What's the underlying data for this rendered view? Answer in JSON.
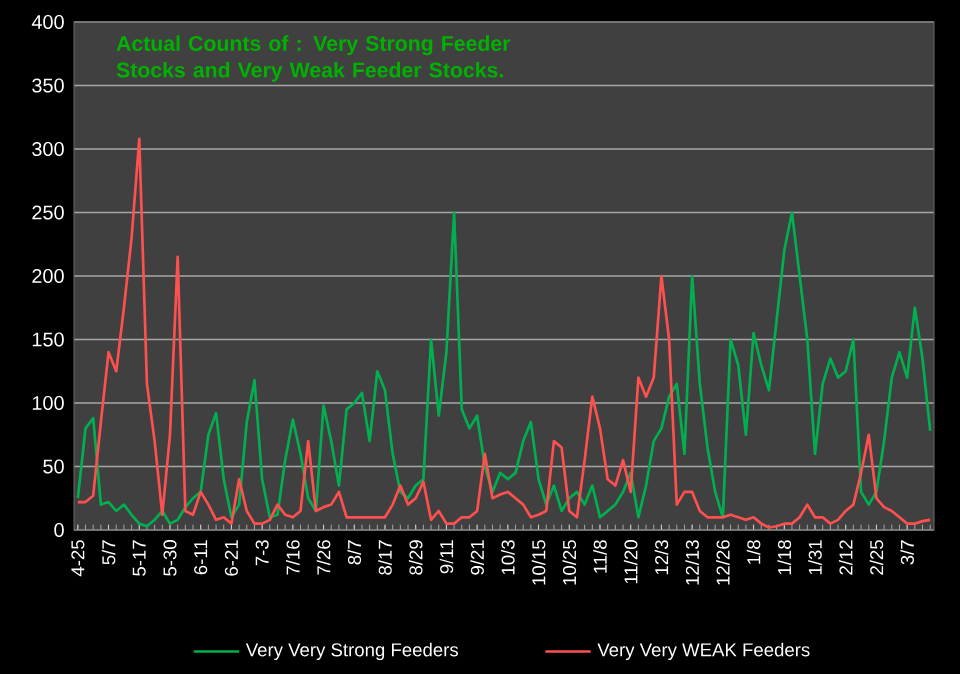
{
  "chart_data": {
    "type": "line",
    "title": "Actual Counts of : Very Strong Feeder Stocks and Very Weak Feeder Stocks.",
    "categories": [
      "4-25",
      null,
      null,
      null,
      "5/7",
      null,
      null,
      null,
      "5-17",
      null,
      null,
      null,
      "5-30",
      null,
      null,
      null,
      "6-11",
      null,
      null,
      null,
      "6-21",
      null,
      null,
      null,
      "7-3",
      null,
      null,
      null,
      "7/16",
      null,
      null,
      null,
      "7/26",
      null,
      null,
      null,
      "8/7",
      null,
      null,
      null,
      "8/17",
      null,
      null,
      null,
      "8/29",
      null,
      null,
      null,
      "9/11",
      null,
      null,
      null,
      "9/21",
      null,
      null,
      null,
      "10/3",
      null,
      null,
      null,
      "10/15",
      null,
      null,
      null,
      "10/25",
      null,
      null,
      null,
      "11/8",
      null,
      null,
      null,
      "11/20",
      null,
      null,
      null,
      "12/3",
      null,
      null,
      null,
      "12/13",
      null,
      null,
      null,
      "12/26",
      null,
      null,
      null,
      "1/8",
      null,
      null,
      null,
      "1/18",
      null,
      null,
      null,
      "1/31",
      null,
      null,
      null,
      "2/12",
      null,
      null,
      null,
      "2/25",
      null,
      null,
      null,
      "3/7",
      null,
      null,
      null
    ],
    "series": [
      {
        "name": "Very Very Strong Feeders",
        "color": "#00b050",
        "values": [
          25,
          80,
          88,
          20,
          22,
          15,
          20,
          12,
          5,
          3,
          8,
          15,
          5,
          8,
          18,
          25,
          30,
          75,
          92,
          40,
          10,
          20,
          85,
          118,
          40,
          10,
          12,
          55,
          87,
          60,
          25,
          15,
          98,
          70,
          35,
          95,
          100,
          108,
          70,
          125,
          110,
          60,
          30,
          25,
          35,
          40,
          150,
          90,
          140,
          250,
          95,
          80,
          90,
          50,
          30,
          45,
          40,
          45,
          70,
          85,
          40,
          20,
          35,
          15,
          25,
          30,
          20,
          35,
          10,
          15,
          20,
          30,
          45,
          10,
          35,
          70,
          80,
          105,
          115,
          60,
          200,
          115,
          65,
          30,
          10,
          150,
          130,
          75,
          155,
          130,
          110,
          165,
          220,
          250,
          200,
          150,
          60,
          115,
          135,
          120,
          125,
          150,
          30,
          20,
          30,
          70,
          120,
          140,
          120,
          175,
          135,
          78
        ]
      },
      {
        "name": "Very Very WEAK Feeders",
        "color": "#ff5050",
        "values": [
          22,
          22,
          27,
          85,
          140,
          125,
          175,
          230,
          308,
          115,
          70,
          12,
          75,
          215,
          15,
          12,
          30,
          20,
          8,
          10,
          5,
          40,
          15,
          5,
          5,
          8,
          20,
          12,
          10,
          15,
          70,
          15,
          18,
          20,
          30,
          10,
          10,
          10,
          10,
          10,
          10,
          20,
          35,
          20,
          25,
          38,
          8,
          15,
          5,
          5,
          10,
          10,
          15,
          60,
          25,
          28,
          30,
          25,
          20,
          10,
          12,
          15,
          70,
          65,
          15,
          10,
          55,
          105,
          80,
          40,
          35,
          55,
          30,
          120,
          105,
          120,
          200,
          150,
          20,
          30,
          30,
          15,
          10,
          10,
          10,
          12,
          10,
          8,
          10,
          5,
          2,
          3,
          5,
          5,
          10,
          20,
          10,
          10,
          5,
          8,
          15,
          20,
          45,
          75,
          25,
          18,
          15,
          10,
          5,
          5,
          7,
          8
        ]
      }
    ],
    "ylim": [
      0,
      400
    ],
    "yticks": [
      0,
      50,
      100,
      150,
      200,
      250,
      300,
      350,
      400
    ],
    "grid": "y",
    "legend": "bottom"
  }
}
